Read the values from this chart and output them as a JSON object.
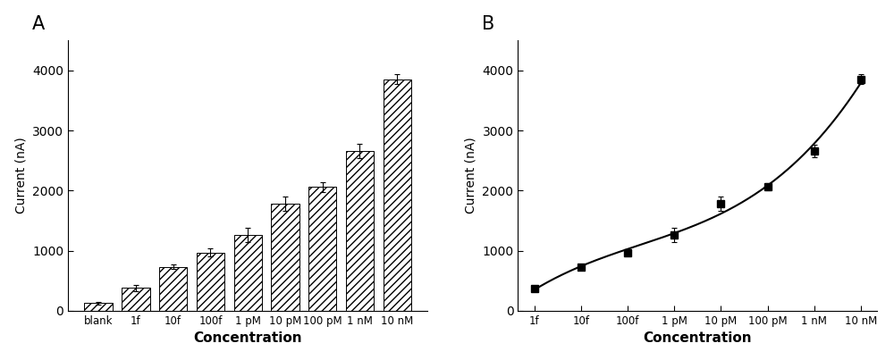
{
  "panel_A": {
    "categories": [
      "blank",
      "1f",
      "10f",
      "100f",
      "1 pM",
      "10 pM",
      "100 pM",
      "1 nM",
      "10 nM"
    ],
    "values": [
      130,
      380,
      730,
      970,
      1260,
      1780,
      2060,
      2660,
      3850
    ],
    "errors": [
      20,
      55,
      40,
      65,
      120,
      120,
      80,
      120,
      80
    ],
    "xlabel": "Concentration",
    "ylabel": "Current (nA)",
    "label": "A",
    "hatch": "////",
    "bar_color": "white",
    "bar_edgecolor": "black",
    "bar_width": 0.75,
    "ylim": [
      0,
      4500
    ],
    "yticks": [
      0,
      1000,
      2000,
      3000,
      4000
    ]
  },
  "panel_B": {
    "categories": [
      "1f",
      "10f",
      "100f",
      "1 pM",
      "10 pM",
      "100 pM",
      "1 nM",
      "10 nM"
    ],
    "values": [
      370,
      730,
      970,
      1260,
      1780,
      2060,
      2660,
      3850
    ],
    "errors": [
      0,
      40,
      55,
      120,
      120,
      60,
      110,
      80
    ],
    "xlabel": "Concentration",
    "ylabel": "Current (nA)",
    "label": "B",
    "marker": "s",
    "marker_color": "black",
    "line_color": "black",
    "ylim": [
      0,
      4500
    ],
    "yticks": [
      0,
      1000,
      2000,
      3000,
      4000
    ]
  },
  "figsize": [
    10.0,
    4.03
  ],
  "dpi": 100
}
